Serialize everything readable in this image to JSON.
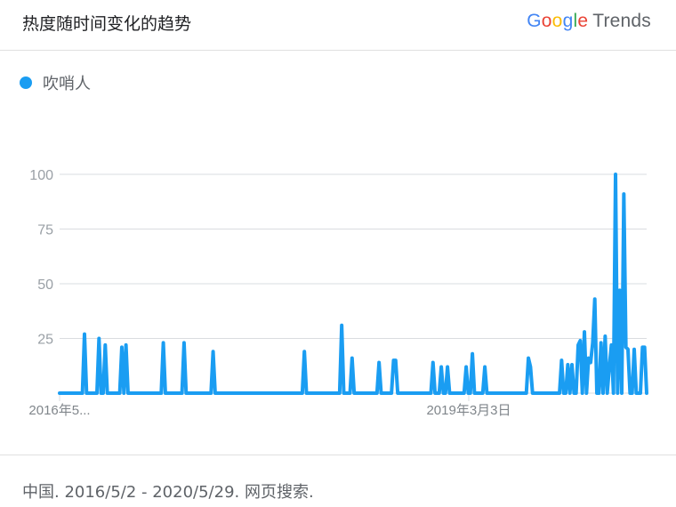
{
  "header": {
    "title": "热度随时间变化的趋势",
    "logo": {
      "g1": "G",
      "o1": "o",
      "o2": "o",
      "g2": "g",
      "l": "l",
      "e": "e",
      "trends": "Trends"
    }
  },
  "legend": {
    "label": "吹哨人",
    "color": "#1a9df2"
  },
  "footer": {
    "text": "中国. 2016/5/2 - 2020/5/29. 网页搜索."
  },
  "chart_data": {
    "type": "line",
    "ylim": [
      0,
      100
    ],
    "y_ticks": [
      25,
      50,
      75,
      100
    ],
    "x_tick_labels": [
      "2016年5...",
      "2019年3月3日"
    ],
    "grid": true,
    "series": [
      {
        "name": "吹哨人",
        "color": "#1a9df2",
        "values": [
          0,
          0,
          0,
          0,
          0,
          0,
          0,
          0,
          0,
          0,
          0,
          0,
          27,
          0,
          0,
          0,
          0,
          0,
          0,
          25,
          0,
          0,
          22,
          0,
          0,
          0,
          0,
          0,
          0,
          0,
          21,
          0,
          22,
          0,
          0,
          0,
          0,
          0,
          0,
          0,
          0,
          0,
          0,
          0,
          0,
          0,
          0,
          0,
          0,
          0,
          23,
          0,
          0,
          0,
          0,
          0,
          0,
          0,
          0,
          0,
          23,
          0,
          0,
          0,
          0,
          0,
          0,
          0,
          0,
          0,
          0,
          0,
          0,
          0,
          19,
          0,
          0,
          0,
          0,
          0,
          0,
          0,
          0,
          0,
          0,
          0,
          0,
          0,
          0,
          0,
          0,
          0,
          0,
          0,
          0,
          0,
          0,
          0,
          0,
          0,
          0,
          0,
          0,
          0,
          0,
          0,
          0,
          0,
          0,
          0,
          0,
          0,
          0,
          0,
          0,
          0,
          0,
          0,
          19,
          0,
          0,
          0,
          0,
          0,
          0,
          0,
          0,
          0,
          0,
          0,
          0,
          0,
          0,
          0,
          0,
          0,
          31,
          0,
          0,
          0,
          0,
          16,
          0,
          0,
          0,
          0,
          0,
          0,
          0,
          0,
          0,
          0,
          0,
          0,
          14,
          0,
          0,
          0,
          0,
          0,
          0,
          15,
          15,
          0,
          0,
          0,
          0,
          0,
          0,
          0,
          0,
          0,
          0,
          0,
          0,
          0,
          0,
          0,
          0,
          0,
          14,
          0,
          0,
          0,
          12,
          0,
          0,
          12,
          0,
          0,
          0,
          0,
          0,
          0,
          0,
          0,
          12,
          0,
          0,
          18,
          0,
          0,
          0,
          0,
          0,
          12,
          0,
          0,
          0,
          0,
          0,
          0,
          0,
          0,
          0,
          0,
          0,
          0,
          0,
          0,
          0,
          0,
          0,
          0,
          0,
          0,
          16,
          12,
          0,
          0,
          0,
          0,
          0,
          0,
          0,
          0,
          0,
          0,
          0,
          0,
          0,
          0,
          15,
          0,
          0,
          13,
          0,
          13,
          0,
          0,
          22,
          24,
          0,
          28,
          0,
          16,
          14,
          23,
          43,
          0,
          0,
          23,
          0,
          26,
          0,
          12,
          22,
          0,
          100,
          0,
          47,
          0,
          91,
          21,
          20,
          0,
          0,
          20,
          0,
          0,
          0,
          21,
          21,
          0
        ]
      }
    ]
  }
}
